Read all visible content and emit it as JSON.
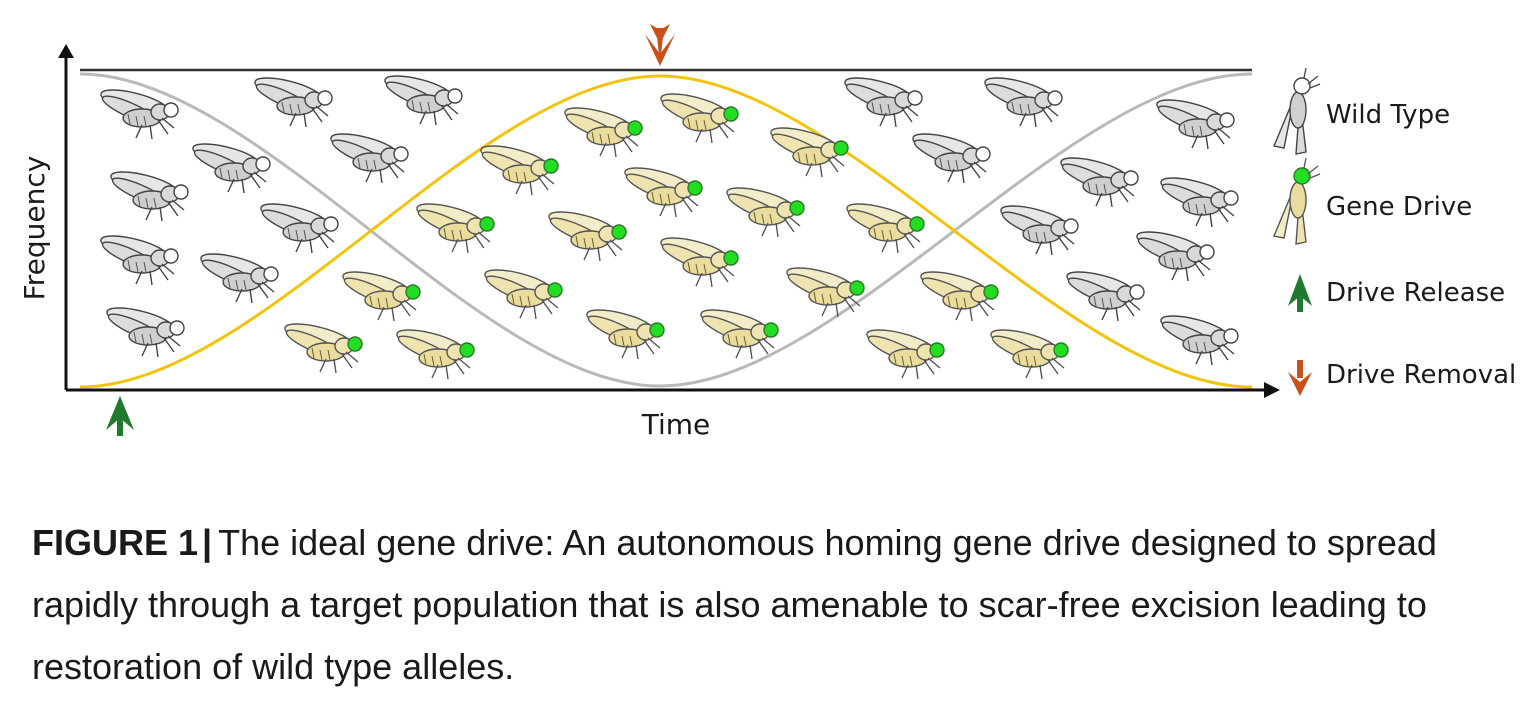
{
  "diagram": {
    "y_axis_label": "Frequency",
    "x_axis_label": "Time",
    "legend": {
      "wild_type": "Wild Type",
      "gene_drive": "Gene Drive",
      "drive_release": "Drive Release",
      "drive_removal": "Drive Removal"
    },
    "colors": {
      "wild_type_curve": "#b9b9b9",
      "gene_drive_curve": "#f2c40f",
      "drive_release_arrow": "#1f7a2e",
      "drive_removal_arrow": "#c8511a",
      "gene_drive_eye": "#22dd22",
      "wild_type_body": "#d9d9d9",
      "gene_drive_body": "#efe4b0"
    },
    "icons": {
      "wild_type_fly": "fly-wild-type-icon",
      "gene_drive_fly": "fly-gene-drive-icon",
      "release_arrow": "arrow-up-icon",
      "removal_arrow": "arrow-down-icon"
    }
  },
  "caption": {
    "label": "FIGURE 1",
    "separator": "|",
    "text": "The ideal gene drive: An autonomous homing gene drive designed to spread rapidly through a target population that is also amenable to scar-free excision leading to restoration of wild type alleles."
  }
}
